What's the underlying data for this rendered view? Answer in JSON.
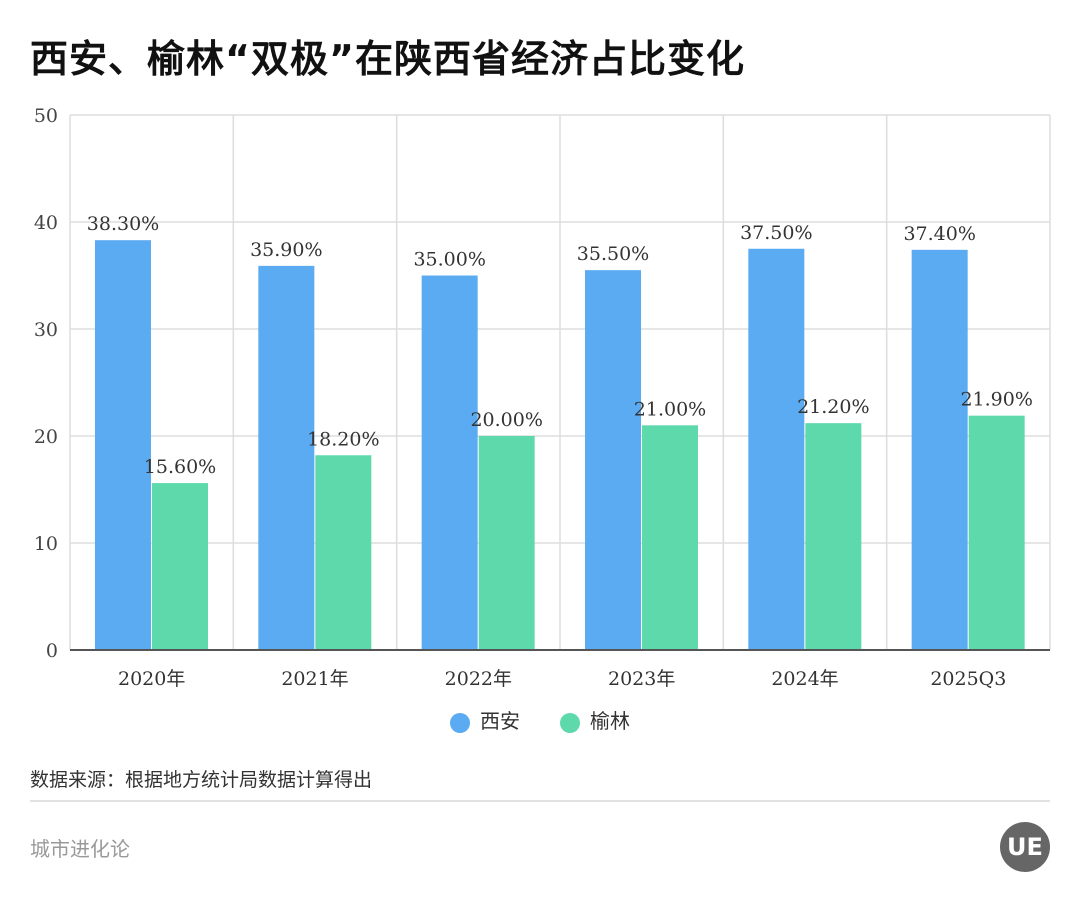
{
  "title": "西安、榆林“双极”在陕西省经济占比变化",
  "chart_data": {
    "type": "bar",
    "title": "西安、榆林“双极”在陕西省经济占比变化",
    "categories": [
      "2020年",
      "2021年",
      "2022年",
      "2023年",
      "2024年",
      "2025Q3"
    ],
    "series": [
      {
        "name": "西安",
        "values": [
          38.3,
          35.9,
          35.0,
          35.5,
          37.5,
          37.4
        ],
        "labels": [
          "38.30%",
          "35.90%",
          "35.00%",
          "35.50%",
          "37.50%",
          "37.40%"
        ],
        "color": "#5aabf2"
      },
      {
        "name": "榆林",
        "values": [
          15.6,
          18.2,
          20.0,
          21.0,
          21.2,
          21.9
        ],
        "labels": [
          "15.60%",
          "18.20%",
          "20.00%",
          "21.00%",
          "21.20%",
          "21.90%"
        ],
        "color": "#5ed9ab"
      }
    ],
    "ylim": [
      0,
      50
    ],
    "yticks": [
      "0",
      "10",
      "20",
      "30",
      "40",
      "50"
    ],
    "grid": true,
    "legend": "bottom-center"
  },
  "source": "数据来源：根据地方统计局数据计算得出",
  "brand": "城市进化论",
  "logo": "UE"
}
